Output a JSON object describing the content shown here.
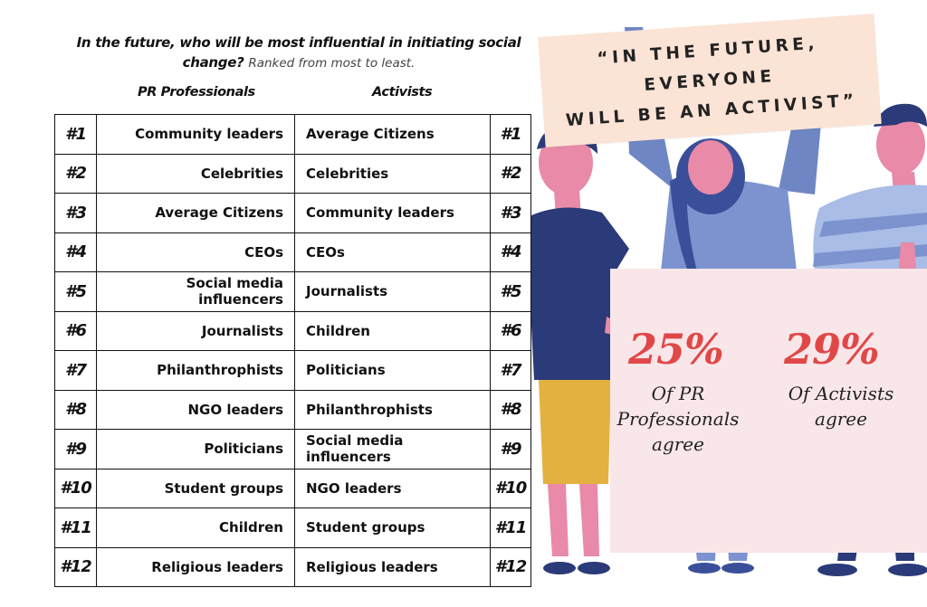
{
  "title": {
    "question": "In the future, who will be most influential in initiating social change?",
    "note": "Ranked from most to least."
  },
  "columns": {
    "pr": "PR Professionals",
    "activists": "Activists"
  },
  "rows": [
    {
      "rank": "#1",
      "pr": "Community leaders",
      "activists": "Average Citizens"
    },
    {
      "rank": "#2",
      "pr": "Celebrities",
      "activists": "Celebrities"
    },
    {
      "rank": "#3",
      "pr": "Average Citizens",
      "activists": "Community leaders"
    },
    {
      "rank": "#4",
      "pr": "CEOs",
      "activists": "CEOs"
    },
    {
      "rank": "#5",
      "pr": "Social media influencers",
      "activists": "Journalists"
    },
    {
      "rank": "#6",
      "pr": "Journalists",
      "activists": "Children"
    },
    {
      "rank": "#7",
      "pr": "Philanthrophists",
      "activists": "Politicians"
    },
    {
      "rank": "#8",
      "pr": "NGO leaders",
      "activists": "Philanthrophists"
    },
    {
      "rank": "#9",
      "pr": "Politicians",
      "activists": "Social media influencers"
    },
    {
      "rank": "#10",
      "pr": "Student groups",
      "activists": "NGO leaders"
    },
    {
      "rank": "#11",
      "pr": "Children",
      "activists": "Student groups"
    },
    {
      "rank": "#12",
      "pr": "Religious leaders",
      "activists": "Religious leaders"
    }
  ],
  "quote": {
    "line1": "“IN THE FUTURE, EVERYONE",
    "line2": "WILL BE AN ACTIVIST”"
  },
  "sign": {
    "pr_value": "25%",
    "pr_line1": "Of PR",
    "pr_line2": "Professionals",
    "pr_line3": "agree",
    "act_value": "29%",
    "act_line1": "Of Activists",
    "act_line2": "agree"
  },
  "colors": {
    "accent": "#e04848",
    "navy": "#2b3a78",
    "skin": "#e88aa8",
    "sign": "#f8e6e9",
    "banner": "#fbe3d6"
  }
}
